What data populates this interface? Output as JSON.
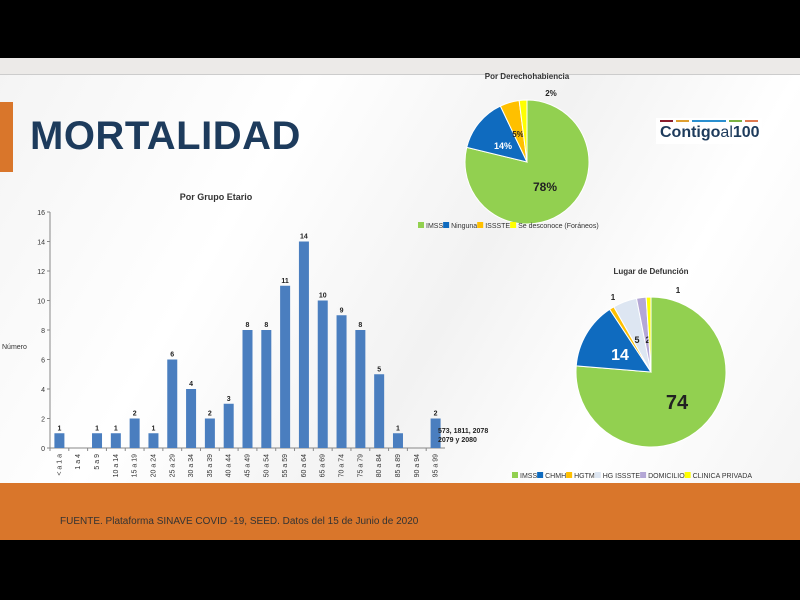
{
  "slide": {
    "title": "MORTALIDAD",
    "source": "FUENTE. Plataforma SINAVE COVID -19, SEED. Datos del 15 de Junio de 2020",
    "logo": {
      "main": "Contigo",
      "mid": "al",
      "num": "100"
    }
  },
  "chart_data": [
    {
      "type": "bar",
      "title": "Por Grupo Etario",
      "ylabel": "Número",
      "xlabel": "",
      "ylim": [
        0,
        16
      ],
      "yticks": [
        0,
        2,
        4,
        6,
        8,
        10,
        12,
        14,
        16
      ],
      "categories": [
        "< a 1 a",
        "1 a 4",
        "5 a 9",
        "10 a 14",
        "15 a 19",
        "20 a 24",
        "25 a 29",
        "30 a 34",
        "35 a 39",
        "40 a 44",
        "45 a 49",
        "50 a 54",
        "55 a 59",
        "60 a 64",
        "65 a 69",
        "70 a 74",
        "75 a 79",
        "80 a 84",
        "85 a 89",
        "90 a 94",
        "95 a 99"
      ],
      "values": [
        1,
        0,
        1,
        1,
        2,
        1,
        6,
        4,
        2,
        3,
        8,
        8,
        11,
        14,
        10,
        9,
        8,
        5,
        1,
        0,
        2
      ],
      "annotation": [
        "573, 1811, 2078",
        "2079 y 2080"
      ],
      "color": "#4a7ebf"
    },
    {
      "type": "pie",
      "title": "Por Derechohabiencia",
      "labels": [
        "IMSS",
        "Ninguna",
        "ISSSTE",
        "Se desconoce (Foráneos)"
      ],
      "values": [
        78,
        14,
        5,
        2
      ],
      "data_labels": [
        "78%",
        "14%",
        "5%",
        "2%"
      ],
      "colors": [
        "#92d050",
        "#0f6bbf",
        "#ffc000",
        "#ffff00"
      ],
      "legend": "bottom"
    },
    {
      "type": "pie",
      "title": "Lugar de Defunción",
      "labels": [
        "IMSS",
        "CHMH",
        "HGTM",
        "HG ISSSTE",
        "DOMICILIO",
        "CLINICA PRIVADA"
      ],
      "values": [
        74,
        14,
        1,
        5,
        2,
        1
      ],
      "data_labels": [
        "74",
        "14",
        "1",
        "5",
        "2",
        "1"
      ],
      "colors": [
        "#92d050",
        "#0f6bbf",
        "#ffc000",
        "#dde6f2",
        "#b4a7d6",
        "#ffff00"
      ],
      "legend": "bottom"
    }
  ]
}
